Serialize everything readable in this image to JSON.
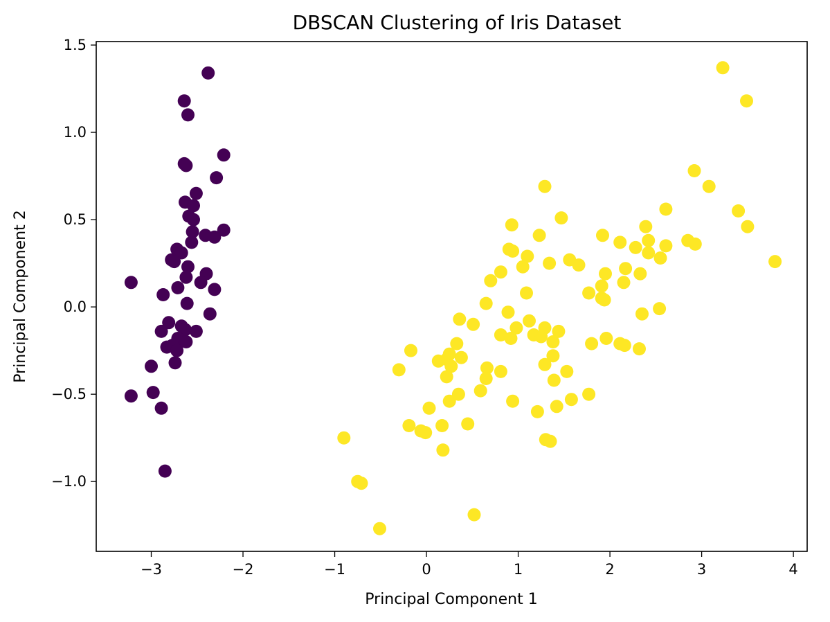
{
  "chart_data": {
    "type": "scatter",
    "title": "DBSCAN Clustering of Iris Dataset",
    "xlabel": "Principal Component 1",
    "ylabel": "Principal Component 2",
    "xlim": [
      -3.6,
      4.15
    ],
    "ylim": [
      -1.4,
      1.52
    ],
    "grid": false,
    "legend": "none",
    "xticks": [
      {
        "value": -3,
        "label": "−3"
      },
      {
        "value": -2,
        "label": "−2"
      },
      {
        "value": -1,
        "label": "−1"
      },
      {
        "value": 0,
        "label": "0"
      },
      {
        "value": 1,
        "label": "1"
      },
      {
        "value": 2,
        "label": "2"
      },
      {
        "value": 3,
        "label": "3"
      },
      {
        "value": 4,
        "label": "4"
      }
    ],
    "yticks": [
      {
        "value": -1.0,
        "label": "−1.0"
      },
      {
        "value": -0.5,
        "label": "−0.5"
      },
      {
        "value": 0.0,
        "label": "0.0"
      },
      {
        "value": 0.5,
        "label": "0.5"
      },
      {
        "value": 1.0,
        "label": "1.0"
      },
      {
        "value": 1.5,
        "label": "1.5"
      }
    ],
    "series": [
      {
        "color": "#440154",
        "points": [
          [
            -2.38,
            1.34
          ],
          [
            -2.64,
            1.18
          ],
          [
            -2.6,
            1.1
          ],
          [
            -2.21,
            0.87
          ],
          [
            -2.64,
            0.82
          ],
          [
            -2.62,
            0.81
          ],
          [
            -2.29,
            0.74
          ],
          [
            -2.51,
            0.65
          ],
          [
            -2.63,
            0.6
          ],
          [
            -2.54,
            0.58
          ],
          [
            -2.59,
            0.52
          ],
          [
            -2.54,
            0.5
          ],
          [
            -2.55,
            0.43
          ],
          [
            -2.41,
            0.41
          ],
          [
            -2.31,
            0.4
          ],
          [
            -2.21,
            0.44
          ],
          [
            -2.56,
            0.37
          ],
          [
            -2.72,
            0.33
          ],
          [
            -2.67,
            0.31
          ],
          [
            -2.78,
            0.27
          ],
          [
            -2.75,
            0.26
          ],
          [
            -2.6,
            0.23
          ],
          [
            -2.4,
            0.19
          ],
          [
            -2.62,
            0.17
          ],
          [
            -2.46,
            0.14
          ],
          [
            -3.22,
            0.14
          ],
          [
            -2.71,
            0.11
          ],
          [
            -2.31,
            0.1
          ],
          [
            -2.87,
            0.07
          ],
          [
            -2.61,
            0.02
          ],
          [
            -2.36,
            -0.04
          ],
          [
            -2.81,
            -0.09
          ],
          [
            -2.67,
            -0.11
          ],
          [
            -2.63,
            -0.13
          ],
          [
            -2.89,
            -0.14
          ],
          [
            -2.51,
            -0.14
          ],
          [
            -2.71,
            -0.18
          ],
          [
            -2.68,
            -0.19
          ],
          [
            -2.62,
            -0.2
          ],
          [
            -2.83,
            -0.23
          ],
          [
            -2.77,
            -0.22
          ],
          [
            -2.72,
            -0.25
          ],
          [
            -2.74,
            -0.32
          ],
          [
            -3.0,
            -0.34
          ],
          [
            -2.98,
            -0.49
          ],
          [
            -3.22,
            -0.51
          ],
          [
            -2.89,
            -0.58
          ],
          [
            -2.85,
            -0.94
          ]
        ]
      },
      {
        "color": "#fde725",
        "points": [
          [
            3.23,
            1.37
          ],
          [
            3.49,
            1.18
          ],
          [
            2.92,
            0.78
          ],
          [
            3.08,
            0.69
          ],
          [
            1.29,
            0.69
          ],
          [
            2.61,
            0.56
          ],
          [
            3.4,
            0.55
          ],
          [
            1.47,
            0.51
          ],
          [
            3.5,
            0.46
          ],
          [
            2.39,
            0.46
          ],
          [
            0.93,
            0.47
          ],
          [
            1.23,
            0.41
          ],
          [
            1.92,
            0.41
          ],
          [
            2.11,
            0.37
          ],
          [
            2.85,
            0.38
          ],
          [
            2.93,
            0.36
          ],
          [
            2.42,
            0.38
          ],
          [
            2.61,
            0.35
          ],
          [
            2.28,
            0.34
          ],
          [
            0.9,
            0.33
          ],
          [
            0.94,
            0.32
          ],
          [
            2.42,
            0.31
          ],
          [
            1.1,
            0.29
          ],
          [
            2.55,
            0.28
          ],
          [
            1.56,
            0.27
          ],
          [
            3.8,
            0.26
          ],
          [
            1.34,
            0.25
          ],
          [
            1.66,
            0.24
          ],
          [
            1.05,
            0.23
          ],
          [
            2.17,
            0.22
          ],
          [
            0.81,
            0.2
          ],
          [
            1.95,
            0.19
          ],
          [
            2.33,
            0.19
          ],
          [
            0.7,
            0.15
          ],
          [
            2.15,
            0.14
          ],
          [
            1.91,
            0.12
          ],
          [
            1.77,
            0.08
          ],
          [
            1.09,
            0.08
          ],
          [
            1.91,
            0.05
          ],
          [
            1.94,
            0.04
          ],
          [
            0.65,
            0.02
          ],
          [
            2.54,
            -0.01
          ],
          [
            0.89,
            -0.03
          ],
          [
            2.35,
            -0.04
          ],
          [
            0.36,
            -0.07
          ],
          [
            1.12,
            -0.08
          ],
          [
            0.51,
            -0.1
          ],
          [
            0.98,
            -0.12
          ],
          [
            1.29,
            -0.12
          ],
          [
            1.44,
            -0.14
          ],
          [
            0.81,
            -0.16
          ],
          [
            1.17,
            -0.16
          ],
          [
            1.25,
            -0.17
          ],
          [
            1.96,
            -0.18
          ],
          [
            0.92,
            -0.18
          ],
          [
            1.38,
            -0.2
          ],
          [
            2.11,
            -0.21
          ],
          [
            2.16,
            -0.22
          ],
          [
            0.33,
            -0.21
          ],
          [
            1.8,
            -0.21
          ],
          [
            2.32,
            -0.24
          ],
          [
            -0.17,
            -0.25
          ],
          [
            0.25,
            -0.27
          ],
          [
            0.38,
            -0.29
          ],
          [
            1.38,
            -0.28
          ],
          [
            0.22,
            -0.3
          ],
          [
            0.13,
            -0.31
          ],
          [
            0.27,
            -0.34
          ],
          [
            1.29,
            -0.33
          ],
          [
            0.66,
            -0.35
          ],
          [
            1.53,
            -0.37
          ],
          [
            0.81,
            -0.37
          ],
          [
            -0.3,
            -0.36
          ],
          [
            0.22,
            -0.4
          ],
          [
            0.65,
            -0.41
          ],
          [
            1.39,
            -0.42
          ],
          [
            0.59,
            -0.48
          ],
          [
            0.35,
            -0.5
          ],
          [
            1.77,
            -0.5
          ],
          [
            0.25,
            -0.54
          ],
          [
            0.94,
            -0.54
          ],
          [
            1.58,
            -0.53
          ],
          [
            1.42,
            -0.57
          ],
          [
            0.03,
            -0.58
          ],
          [
            1.21,
            -0.6
          ],
          [
            0.45,
            -0.67
          ],
          [
            0.17,
            -0.68
          ],
          [
            -0.19,
            -0.68
          ],
          [
            -0.06,
            -0.71
          ],
          [
            -0.01,
            -0.72
          ],
          [
            -0.9,
            -0.75
          ],
          [
            1.3,
            -0.76
          ],
          [
            1.35,
            -0.77
          ],
          [
            0.18,
            -0.82
          ],
          [
            -0.75,
            -1.0
          ],
          [
            -0.71,
            -1.01
          ],
          [
            0.52,
            -1.19
          ],
          [
            -0.51,
            -1.27
          ]
        ]
      }
    ]
  }
}
